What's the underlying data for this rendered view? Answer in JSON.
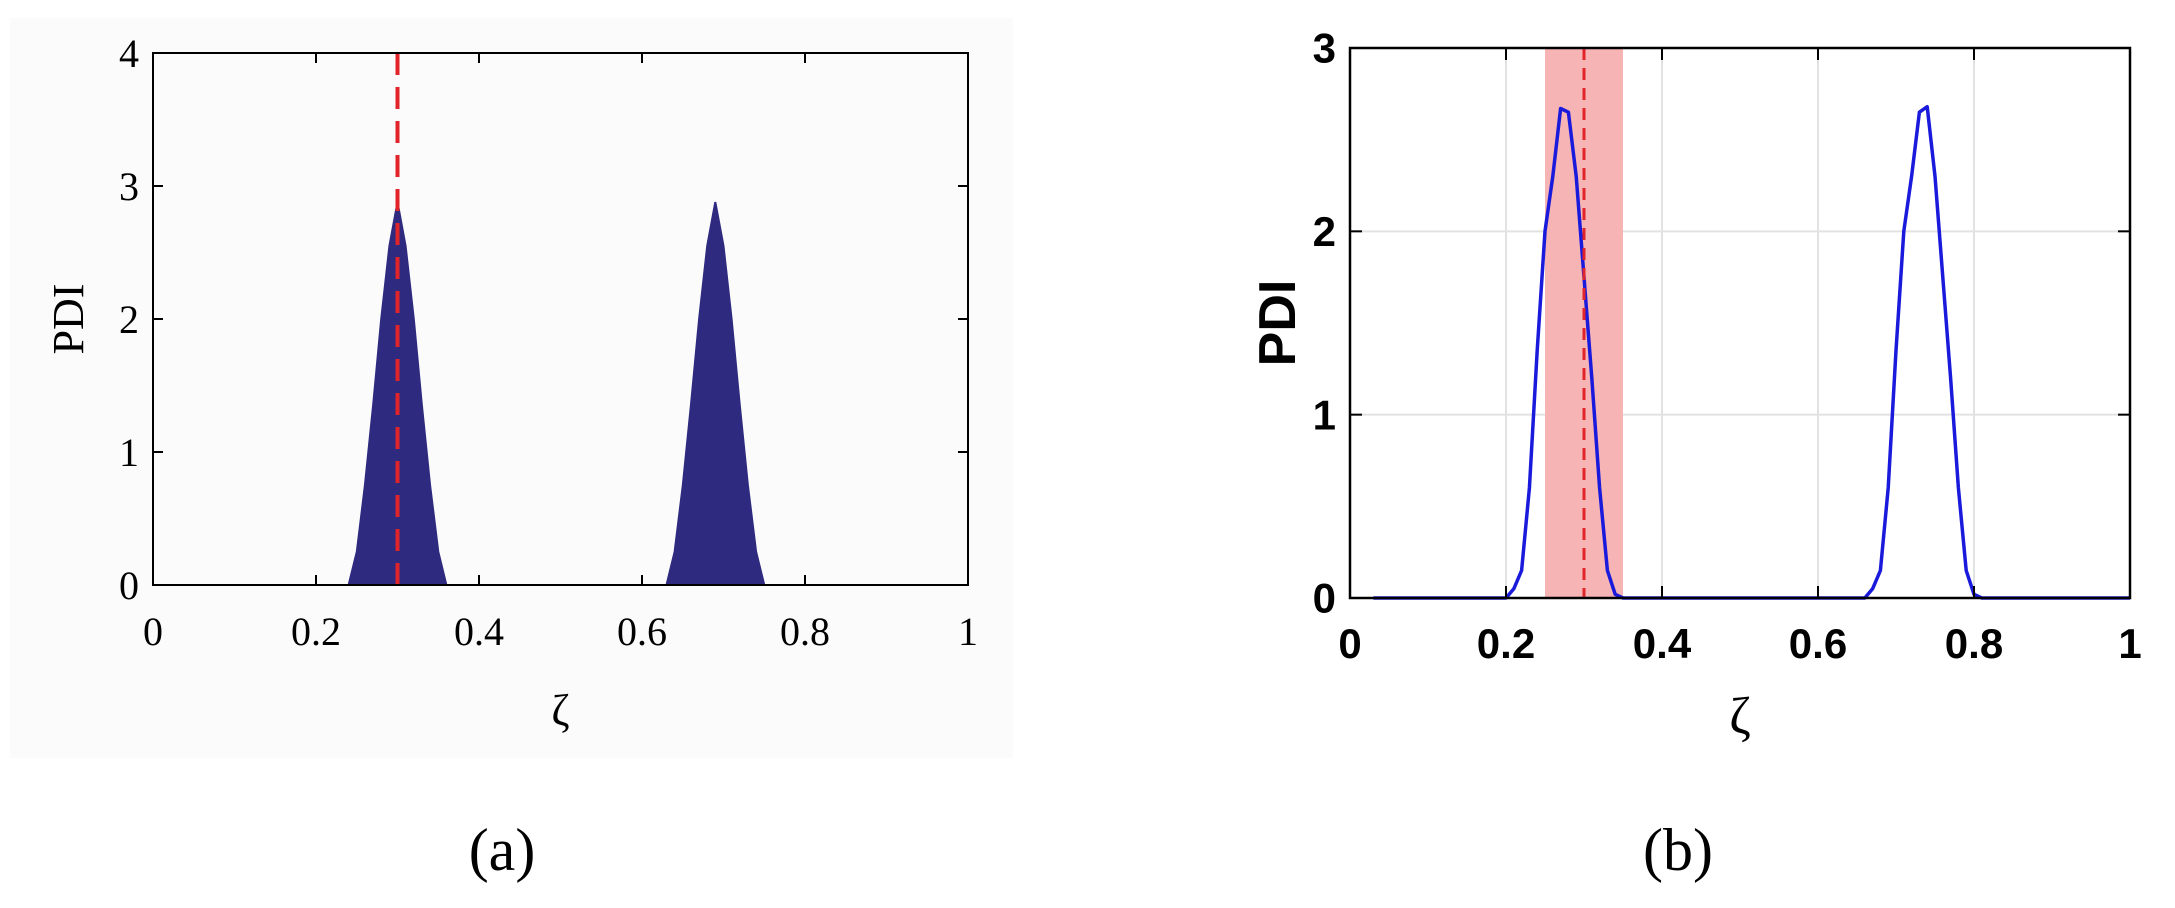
{
  "chart_data": [
    {
      "type": "area",
      "panel_label": "(a)",
      "xlabel": "ζ",
      "ylabel": "PDI",
      "xlim": [
        0,
        1
      ],
      "ylim": [
        0,
        4
      ],
      "xticks": [
        0,
        0.2,
        0.4,
        0.6,
        0.8,
        1
      ],
      "xtick_labels": [
        "0",
        "0.2",
        "0.4",
        "0.6",
        "0.8",
        "1"
      ],
      "yticks": [
        0,
        1,
        2,
        3,
        4
      ],
      "ytick_labels": [
        "0",
        "1",
        "2",
        "3",
        "4"
      ],
      "grid": false,
      "series": [
        {
          "color": "#2e2a7f",
          "x": [
            0,
            0.24,
            0.25,
            0.26,
            0.27,
            0.28,
            0.29,
            0.3,
            0.31,
            0.32,
            0.33,
            0.34,
            0.35,
            0.36,
            0.37,
            0.63,
            0.64,
            0.65,
            0.66,
            0.67,
            0.68,
            0.69,
            0.7,
            0.71,
            0.72,
            0.73,
            0.74,
            0.75,
            0.76,
            0.77,
            1
          ],
          "y": [
            0,
            0,
            0.25,
            0.75,
            1.35,
            2.0,
            2.55,
            2.88,
            2.55,
            2.0,
            1.35,
            0.75,
            0.25,
            0,
            0,
            0,
            0.25,
            0.75,
            1.35,
            2.0,
            2.55,
            2.88,
            2.55,
            2.0,
            1.35,
            0.75,
            0.25,
            0,
            0,
            0,
            0
          ]
        }
      ],
      "annotations": [
        {
          "type": "vline",
          "x": 0.3,
          "color": "#e0242a",
          "style": "dashed"
        }
      ]
    },
    {
      "type": "line",
      "panel_label": "(b)",
      "xlabel": "ζ",
      "ylabel": "PDI",
      "xlim": [
        0,
        1
      ],
      "ylim": [
        0,
        3
      ],
      "xticks": [
        0,
        0.2,
        0.4,
        0.6,
        0.8,
        1
      ],
      "xtick_labels": [
        "0",
        "0.2",
        "0.4",
        "0.6",
        "0.8",
        "1"
      ],
      "yticks": [
        0,
        1,
        2,
        3
      ],
      "ytick_labels": [
        "0",
        "1",
        "2",
        "3"
      ],
      "grid": true,
      "series": [
        {
          "color": "#1a1adc",
          "x": [
            0.03,
            0.2,
            0.21,
            0.22,
            0.23,
            0.24,
            0.25,
            0.26,
            0.27,
            0.28,
            0.29,
            0.3,
            0.31,
            0.32,
            0.33,
            0.34,
            0.35,
            0.36,
            0.66,
            0.67,
            0.68,
            0.69,
            0.7,
            0.71,
            0.72,
            0.73,
            0.74,
            0.75,
            0.76,
            0.77,
            0.78,
            0.79,
            0.8,
            0.81,
            1.0
          ],
          "y": [
            0,
            0,
            0.05,
            0.15,
            0.6,
            1.35,
            2.0,
            2.3,
            2.67,
            2.65,
            2.3,
            1.75,
            1.2,
            0.6,
            0.15,
            0.02,
            0,
            0,
            0,
            0.05,
            0.15,
            0.6,
            1.35,
            2.0,
            2.3,
            2.65,
            2.68,
            2.3,
            1.75,
            1.2,
            0.6,
            0.15,
            0.02,
            0,
            0
          ]
        }
      ],
      "annotations": [
        {
          "type": "vline",
          "x": 0.3,
          "color": "#e0242a",
          "style": "dashed"
        },
        {
          "type": "vspan",
          "x0": 0.25,
          "x1": 0.35,
          "color": "#f7b4b4"
        }
      ]
    }
  ]
}
